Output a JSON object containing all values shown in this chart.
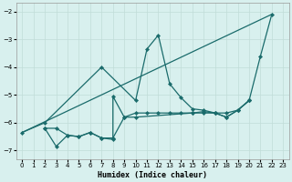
{
  "xlabel": "Humidex (Indice chaleur)",
  "bg_color": "#d8f0ee",
  "line_color": "#1a6b6b",
  "grid_color": "#c0dcd8",
  "xlim": [
    -0.5,
    23.5
  ],
  "ylim": [
    -7.3,
    -1.7
  ],
  "yticks": [
    -7,
    -6,
    -5,
    -4,
    -3,
    -2
  ],
  "xticks": [
    0,
    1,
    2,
    3,
    4,
    5,
    6,
    7,
    8,
    9,
    10,
    11,
    12,
    13,
    14,
    15,
    16,
    17,
    18,
    19,
    20,
    21,
    22,
    23
  ],
  "series1": [
    [
      0,
      -6.35
    ],
    [
      2,
      -6.0
    ],
    [
      7,
      -4.0
    ],
    [
      10,
      -5.2
    ],
    [
      11,
      -3.35
    ],
    [
      12,
      -2.85
    ],
    [
      13,
      -4.6
    ],
    [
      14,
      -5.1
    ],
    [
      15,
      -5.5
    ],
    [
      16,
      -5.55
    ],
    [
      17,
      -5.65
    ],
    [
      18,
      -5.8
    ],
    [
      19,
      -5.55
    ],
    [
      20,
      -5.2
    ],
    [
      21,
      -3.6
    ],
    [
      22,
      -2.1
    ]
  ],
  "series2": [
    [
      0,
      -6.35
    ],
    [
      22,
      -2.1
    ]
  ],
  "series3": [
    [
      2,
      -6.2
    ],
    [
      3,
      -6.85
    ],
    [
      4,
      -6.45
    ],
    [
      5,
      -6.5
    ],
    [
      6,
      -6.35
    ],
    [
      7,
      -6.55
    ],
    [
      8,
      -6.6
    ],
    [
      8,
      -5.05
    ],
    [
      9,
      -5.8
    ],
    [
      10,
      -5.8
    ],
    [
      15,
      -5.65
    ],
    [
      16,
      -5.6
    ],
    [
      17,
      -5.65
    ],
    [
      18,
      -5.8
    ],
    [
      19,
      -5.55
    ],
    [
      20,
      -5.2
    ]
  ],
  "series4": [
    [
      2,
      -6.2
    ],
    [
      3,
      -6.2
    ],
    [
      4,
      -6.45
    ],
    [
      5,
      -6.5
    ],
    [
      6,
      -6.35
    ],
    [
      7,
      -6.55
    ],
    [
      8,
      -6.55
    ],
    [
      9,
      -5.8
    ],
    [
      10,
      -5.65
    ],
    [
      11,
      -5.65
    ],
    [
      12,
      -5.65
    ],
    [
      13,
      -5.65
    ],
    [
      14,
      -5.65
    ],
    [
      15,
      -5.65
    ],
    [
      16,
      -5.65
    ],
    [
      17,
      -5.65
    ],
    [
      18,
      -5.65
    ],
    [
      19,
      -5.55
    ],
    [
      20,
      -5.2
    ]
  ]
}
